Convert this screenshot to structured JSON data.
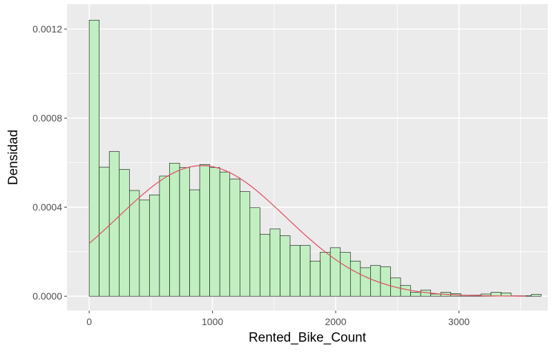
{
  "chart_data": {
    "type": "bar",
    "title": "",
    "xlabel": "Rented_Bike_Count",
    "ylabel": "Densidad",
    "xlim": [
      -180,
      3720
    ],
    "ylim": [
      -6.45e-05,
      0.001312
    ],
    "x_ticks": [
      0,
      1000,
      2000,
      3000
    ],
    "x_tick_labels": [
      "0",
      "1000",
      "2000",
      "3000"
    ],
    "x_minor_ticks": [
      500,
      1500,
      2500,
      3500
    ],
    "y_ticks": [
      0,
      0.0004,
      0.0008,
      0.0012
    ],
    "y_tick_labels": [
      "0.0000",
      "0.0004",
      "0.0008",
      "0.0012"
    ],
    "y_minor_ticks": [
      0.0002,
      0.0006,
      0.001
    ],
    "grid": true,
    "histogram": {
      "bin_width": 81.5,
      "start": 0,
      "densities": [
        0.00124,
        0.00058,
        0.00065,
        0.00057,
        0.000475,
        0.000432,
        0.000455,
        0.00054,
        0.000598,
        0.000578,
        0.000478,
        0.000592,
        0.000578,
        0.000558,
        0.000527,
        0.00047,
        0.000398,
        0.000278,
        0.000302,
        0.000272,
        0.000228,
        0.000228,
        0.000158,
        0.000198,
        0.000218,
        0.000198,
        0.000158,
        0.000128,
        0.000138,
        0.000132,
        8.2e-05,
        4.8e-05,
        1.8e-05,
        2.8e-05,
        1e-05,
        1.8e-05,
        1.2e-05,
        5e-06,
        5e-06,
        1e-05,
        1.8e-05,
        1.5e-05,
        2e-06,
        2e-06,
        8e-06
      ]
    },
    "normal_curve": {
      "mean": 915,
      "sd": 680,
      "x_range": [
        0,
        3540
      ]
    },
    "colors": {
      "bar_fill": "#c1efc1",
      "bar_stroke": "#000000",
      "curve": "#e05263",
      "panel": "#ebebeb",
      "grid": "#ffffff",
      "tick_text": "#4d4d4d",
      "title_text": "#000000"
    }
  }
}
